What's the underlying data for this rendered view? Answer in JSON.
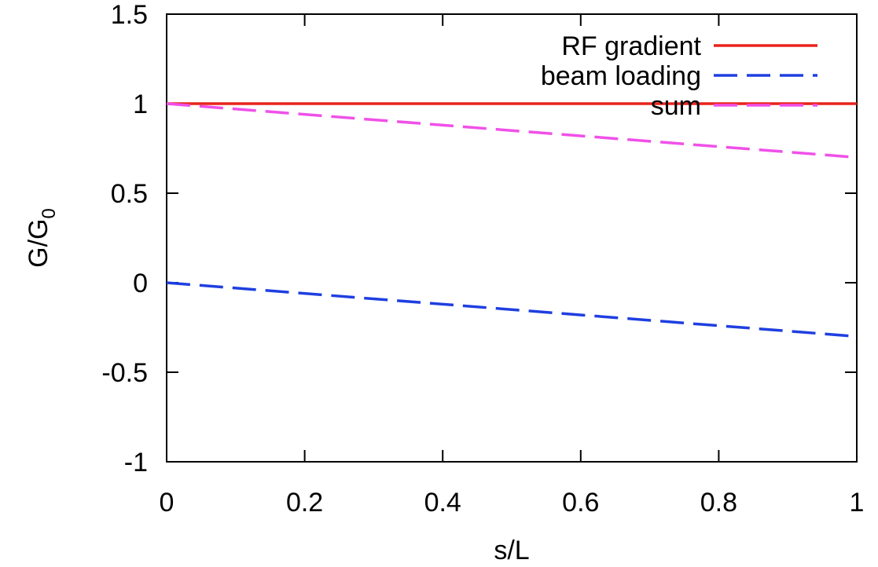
{
  "chart_data": {
    "type": "line",
    "title": "",
    "xlabel": "s/L",
    "ylabel_main": "G/G",
    "ylabel_subscript": "0",
    "xlim": [
      0,
      1
    ],
    "ylim": [
      -1,
      1.5
    ],
    "x_ticks": [
      0,
      0.2,
      0.4,
      0.6,
      0.8,
      1
    ],
    "x_tick_labels": [
      "0",
      "0.2",
      "0.4",
      "0.6",
      "0.8",
      "1"
    ],
    "y_ticks": [
      -1,
      -0.5,
      0,
      0.5,
      1,
      1.5
    ],
    "y_tick_labels": [
      "-1",
      "-0.5",
      "0",
      "0.5",
      "1",
      "1.5"
    ],
    "grid": false,
    "legend_position": "top-right",
    "series": [
      {
        "name": "RF gradient",
        "color": "#e8231b",
        "style": "solid",
        "x": [
          0,
          1
        ],
        "y": [
          1,
          1
        ]
      },
      {
        "name": "beam loading",
        "color": "#1f3fe0",
        "style": "dashed",
        "x": [
          0,
          1
        ],
        "y": [
          0,
          -0.3
        ]
      },
      {
        "name": "sum",
        "color": "#f050e8",
        "style": "dashed",
        "x": [
          0,
          1
        ],
        "y": [
          1,
          0.7
        ]
      }
    ]
  }
}
